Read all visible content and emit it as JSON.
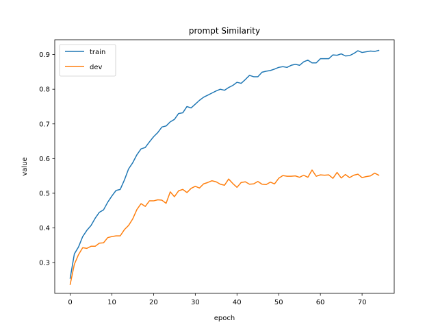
{
  "chart_data": {
    "type": "line",
    "title": "prompt Similarity",
    "xlabel": "epoch",
    "ylabel": "value",
    "xlim": [
      -3.7,
      77.7
    ],
    "ylim": [
      0.2112,
      0.9427
    ],
    "xticks": [
      0,
      10,
      20,
      30,
      40,
      50,
      60,
      70
    ],
    "yticks": [
      0.3,
      0.4,
      0.5,
      0.6,
      0.7,
      0.8,
      0.9
    ],
    "grid": false,
    "legend_position": "top-left",
    "x": [
      0,
      1,
      2,
      3,
      4,
      5,
      6,
      7,
      8,
      9,
      10,
      11,
      12,
      13,
      14,
      15,
      16,
      17,
      18,
      19,
      20,
      21,
      22,
      23,
      24,
      25,
      26,
      27,
      28,
      29,
      30,
      31,
      32,
      33,
      34,
      35,
      36,
      37,
      38,
      39,
      40,
      41,
      42,
      43,
      44,
      45,
      46,
      47,
      48,
      49,
      50,
      51,
      52,
      53,
      54,
      55,
      56,
      57,
      58,
      59,
      60,
      61,
      62,
      63,
      64,
      65,
      66,
      67,
      68,
      69,
      70,
      71,
      72,
      73,
      74
    ],
    "series": [
      {
        "name": "train",
        "color": "#1f77b4",
        "values": [
          0.255,
          0.325,
          0.345,
          0.375,
          0.393,
          0.407,
          0.428,
          0.445,
          0.452,
          0.474,
          0.492,
          0.508,
          0.511,
          0.538,
          0.57,
          0.588,
          0.611,
          0.628,
          0.632,
          0.648,
          0.663,
          0.675,
          0.691,
          0.694,
          0.706,
          0.713,
          0.73,
          0.732,
          0.75,
          0.746,
          0.757,
          0.768,
          0.777,
          0.783,
          0.789,
          0.795,
          0.8,
          0.797,
          0.805,
          0.811,
          0.82,
          0.817,
          0.828,
          0.84,
          0.836,
          0.836,
          0.849,
          0.852,
          0.854,
          0.858,
          0.863,
          0.865,
          0.863,
          0.869,
          0.872,
          0.869,
          0.879,
          0.884,
          0.876,
          0.876,
          0.888,
          0.888,
          0.888,
          0.899,
          0.898,
          0.902,
          0.896,
          0.897,
          0.903,
          0.911,
          0.906,
          0.908,
          0.91,
          0.909,
          0.912
        ]
      },
      {
        "name": "dev",
        "color": "#ff7f0e",
        "values": [
          0.237,
          0.295,
          0.323,
          0.343,
          0.341,
          0.347,
          0.347,
          0.356,
          0.357,
          0.372,
          0.375,
          0.377,
          0.377,
          0.395,
          0.407,
          0.426,
          0.453,
          0.47,
          0.462,
          0.478,
          0.478,
          0.481,
          0.48,
          0.471,
          0.504,
          0.49,
          0.507,
          0.511,
          0.502,
          0.514,
          0.52,
          0.515,
          0.527,
          0.531,
          0.536,
          0.533,
          0.526,
          0.523,
          0.541,
          0.528,
          0.517,
          0.531,
          0.533,
          0.526,
          0.527,
          0.534,
          0.526,
          0.525,
          0.532,
          0.527,
          0.543,
          0.551,
          0.549,
          0.549,
          0.55,
          0.546,
          0.552,
          0.546,
          0.567,
          0.549,
          0.553,
          0.552,
          0.553,
          0.543,
          0.56,
          0.544,
          0.554,
          0.545,
          0.552,
          0.555,
          0.545,
          0.548,
          0.55,
          0.558,
          0.552
        ]
      }
    ]
  }
}
